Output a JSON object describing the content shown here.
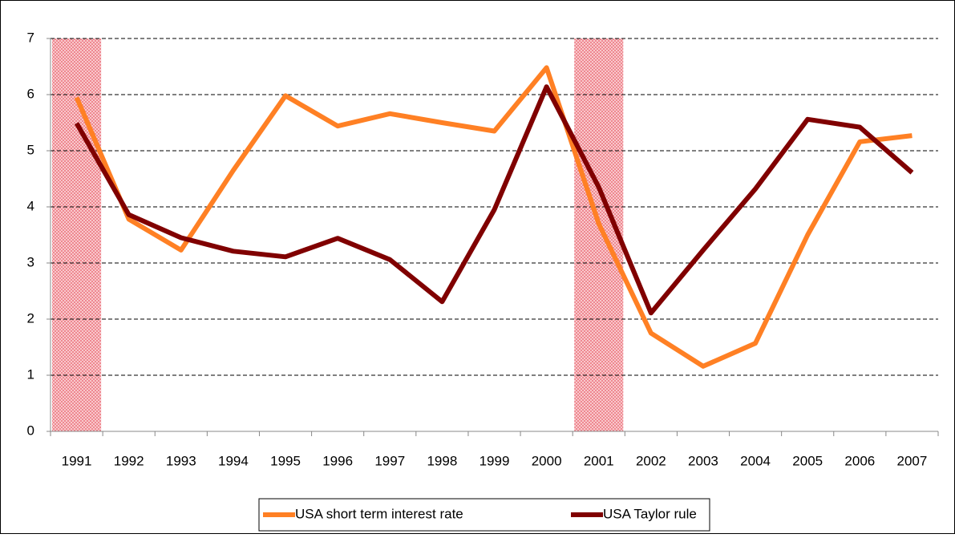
{
  "chart_data": {
    "type": "line",
    "categories": [
      "1991",
      "1992",
      "1993",
      "1994",
      "1995",
      "1996",
      "1997",
      "1998",
      "1999",
      "2000",
      "2001",
      "2002",
      "2003",
      "2004",
      "2005",
      "2006",
      "2007"
    ],
    "series": [
      {
        "name": "USA short term interest rate",
        "color": "#ff8024",
        "values": [
          5.95,
          3.78,
          3.23,
          4.65,
          5.98,
          5.44,
          5.66,
          5.5,
          5.35,
          6.48,
          3.7,
          1.75,
          1.16,
          1.57,
          3.5,
          5.16,
          5.27
        ]
      },
      {
        "name": "USA Taylor rule",
        "color": "#800000",
        "values": [
          5.49,
          3.86,
          3.45,
          3.21,
          3.11,
          3.44,
          3.06,
          2.31,
          3.95,
          6.14,
          4.35,
          2.11,
          3.23,
          4.32,
          5.56,
          5.42,
          4.61
        ]
      }
    ],
    "shaded_categories": [
      "1991",
      "2001"
    ],
    "ylim": [
      0,
      7
    ],
    "yticks": [
      0,
      1,
      2,
      3,
      4,
      5,
      6,
      7
    ],
    "grid": true,
    "legend": "bottom"
  }
}
